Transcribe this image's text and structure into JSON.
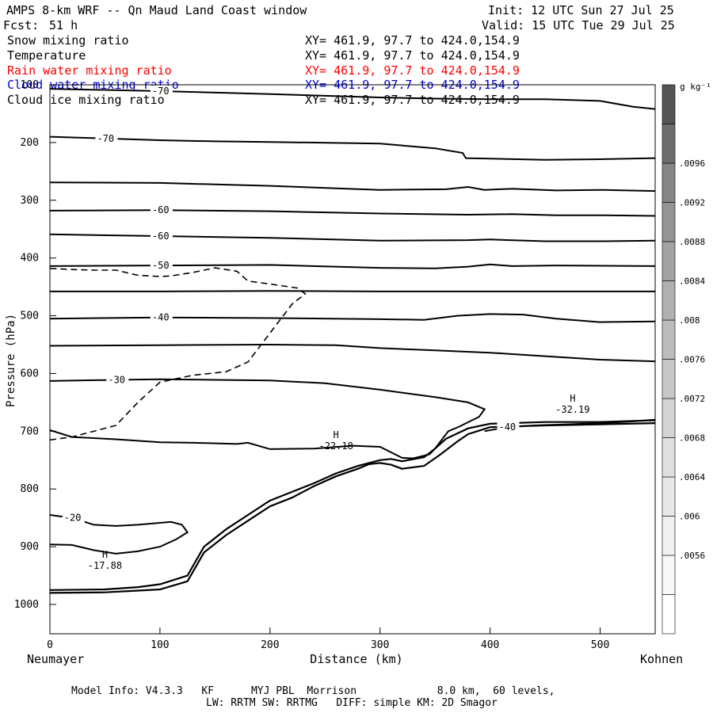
{
  "header": {
    "title": "AMPS 8-km WRF -- Qn Maud Land Coast window",
    "fcst_label": "Fcst:",
    "fcst_value": "51 h",
    "init": "Init: 12 UTC Sun 27 Jul 25",
    "valid": "Valid: 15 UTC Tue 29 Jul 25"
  },
  "fields": [
    {
      "name": "Snow mixing ratio",
      "xy": "XY= 461.9, 97.7 to 424.0,154.9",
      "color": "#000000"
    },
    {
      "name": "Temperature",
      "xy": "XY= 461.9, 97.7 to 424.0,154.9",
      "color": "#000000"
    },
    {
      "name": "Rain water mixing ratio",
      "xy": "XY= 461.9, 97.7 to 424.0,154.9",
      "color": "#ff0000"
    },
    {
      "name": "Cloud water mixing ratio",
      "xy": "XY= 461.9, 97.7 to 424.0,154.9",
      "color": "#0000cc"
    },
    {
      "name": "Cloud ice mixing ratio",
      "xy": "XY= 461.9, 97.7 to 424.0,154.9",
      "color": "#000000"
    }
  ],
  "footer": {
    "line1": "Model Info: V4.3.3   KF      MYJ PBL  Morrison             8.0 km,  60 levels,",
    "line2": "LW: RRTM SW: RRTMG   DIFF: simple KM: 2D Smagor"
  },
  "chart_data": {
    "type": "contour",
    "xlabel": "Distance (km)",
    "ylabel": "Pressure (hPa)",
    "xlim": [
      0,
      550
    ],
    "ylim": [
      1050,
      100
    ],
    "x_ticks": [
      0,
      100,
      200,
      300,
      400,
      500
    ],
    "y_ticks": [
      100,
      200,
      300,
      400,
      500,
      600,
      700,
      800,
      900,
      1000
    ],
    "endpoint_labels": {
      "left": "Neumayer",
      "right": "Kohnen"
    },
    "temperature_contours": [
      {
        "label": "-70",
        "points": [
          [
            0,
            107
          ],
          [
            100,
            111
          ],
          [
            200,
            116
          ],
          [
            300,
            122
          ],
          [
            350,
            124
          ],
          [
            400,
            125
          ],
          [
            450,
            125
          ],
          [
            500,
            128
          ],
          [
            530,
            138
          ],
          [
            550,
            142
          ]
        ]
      },
      {
        "label": "-70",
        "points": [
          [
            0,
            190
          ],
          [
            50,
            193
          ],
          [
            100,
            196
          ],
          [
            150,
            198
          ],
          [
            200,
            199
          ],
          [
            300,
            202
          ],
          [
            350,
            210
          ],
          [
            375,
            218
          ],
          [
            378,
            227
          ],
          [
            400,
            228
          ],
          [
            450,
            230
          ],
          [
            500,
            229
          ],
          [
            550,
            227
          ]
        ]
      },
      {
        "label": "",
        "points": [
          [
            0,
            269
          ],
          [
            100,
            270
          ],
          [
            200,
            275
          ],
          [
            300,
            282
          ],
          [
            360,
            281
          ],
          [
            380,
            277
          ],
          [
            395,
            282
          ],
          [
            420,
            280
          ],
          [
            460,
            283
          ],
          [
            500,
            282
          ],
          [
            550,
            284
          ]
        ]
      },
      {
        "label": "-60",
        "points": [
          [
            0,
            318
          ],
          [
            100,
            317
          ],
          [
            200,
            319
          ],
          [
            300,
            323
          ],
          [
            380,
            325
          ],
          [
            420,
            324
          ],
          [
            460,
            326
          ],
          [
            500,
            326
          ],
          [
            550,
            327
          ]
        ]
      },
      {
        "label": "-60",
        "points": [
          [
            0,
            359
          ],
          [
            100,
            362
          ],
          [
            200,
            365
          ],
          [
            300,
            370
          ],
          [
            380,
            369
          ],
          [
            400,
            368
          ],
          [
            450,
            371
          ],
          [
            500,
            371
          ],
          [
            550,
            370
          ]
        ]
      },
      {
        "label": "-50",
        "points": [
          [
            0,
            414
          ],
          [
            100,
            413
          ],
          [
            200,
            412
          ],
          [
            300,
            417
          ],
          [
            350,
            418
          ],
          [
            380,
            415
          ],
          [
            400,
            411
          ],
          [
            420,
            414
          ],
          [
            460,
            413
          ],
          [
            550,
            414
          ]
        ]
      },
      {
        "label": "",
        "points": [
          [
            0,
            458
          ],
          [
            100,
            458
          ],
          [
            200,
            457
          ],
          [
            300,
            458
          ],
          [
            400,
            458
          ],
          [
            550,
            458
          ]
        ]
      },
      {
        "label": "-40",
        "points": [
          [
            0,
            505
          ],
          [
            100,
            503
          ],
          [
            200,
            504
          ],
          [
            300,
            506
          ],
          [
            340,
            507
          ],
          [
            370,
            500
          ],
          [
            400,
            497
          ],
          [
            430,
            498
          ],
          [
            460,
            505
          ],
          [
            500,
            511
          ],
          [
            550,
            510
          ]
        ]
      },
      {
        "label": "",
        "points": [
          [
            0,
            552
          ],
          [
            100,
            551
          ],
          [
            200,
            550
          ],
          [
            260,
            551
          ],
          [
            300,
            556
          ],
          [
            350,
            560
          ],
          [
            400,
            564
          ],
          [
            450,
            570
          ],
          [
            500,
            576
          ],
          [
            550,
            579
          ]
        ]
      },
      {
        "label": "-30",
        "points": [
          [
            0,
            613
          ],
          [
            60,
            611
          ],
          [
            100,
            610
          ],
          [
            150,
            611
          ],
          [
            200,
            612
          ],
          [
            250,
            617
          ],
          [
            300,
            628
          ],
          [
            350,
            641
          ],
          [
            380,
            650
          ],
          [
            395,
            662
          ],
          [
            390,
            675
          ],
          [
            372,
            692
          ],
          [
            362,
            700
          ],
          [
            350,
            730
          ],
          [
            345,
            740
          ],
          [
            330,
            747
          ],
          [
            320,
            746
          ],
          [
            300,
            727
          ],
          [
            275,
            725
          ],
          [
            240,
            730
          ],
          [
            200,
            731
          ],
          [
            180,
            720
          ],
          [
            170,
            722
          ],
          [
            130,
            720
          ],
          [
            100,
            719
          ],
          [
            60,
            714
          ],
          [
            20,
            710
          ],
          [
            0,
            698
          ]
        ]
      },
      {
        "label": "-20",
        "points": [
          [
            0,
            845
          ],
          [
            20,
            850
          ],
          [
            40,
            862
          ],
          [
            60,
            864
          ],
          [
            80,
            862
          ],
          [
            110,
            857
          ],
          [
            120,
            862
          ],
          [
            125,
            875
          ],
          [
            115,
            887
          ],
          [
            100,
            900
          ],
          [
            80,
            908
          ],
          [
            60,
            912
          ],
          [
            40,
            906
          ],
          [
            20,
            897
          ],
          [
            0,
            896
          ]
        ]
      },
      {
        "label": "-40",
        "points": [
          [
            395,
            700
          ],
          [
            415,
            693
          ],
          [
            440,
            690
          ],
          [
            470,
            688
          ],
          [
            500,
            686
          ],
          [
            530,
            683
          ],
          [
            550,
            680
          ]
        ]
      }
    ],
    "ground_lines": [
      {
        "points": [
          [
            0,
            975
          ],
          [
            50,
            974
          ],
          [
            80,
            970
          ],
          [
            100,
            965
          ],
          [
            125,
            950
          ],
          [
            140,
            900
          ],
          [
            160,
            870
          ],
          [
            180,
            845
          ],
          [
            200,
            820
          ],
          [
            220,
            805
          ],
          [
            240,
            790
          ],
          [
            260,
            773
          ],
          [
            280,
            760
          ],
          [
            290,
            755
          ],
          [
            300,
            750
          ],
          [
            310,
            748
          ],
          [
            320,
            752
          ],
          [
            340,
            745
          ],
          [
            350,
            730
          ],
          [
            360,
            713
          ],
          [
            380,
            695
          ],
          [
            400,
            687
          ],
          [
            450,
            684
          ],
          [
            500,
            684
          ],
          [
            550,
            681
          ]
        ]
      },
      {
        "points": [
          [
            0,
            980
          ],
          [
            50,
            979
          ],
          [
            80,
            976
          ],
          [
            100,
            974
          ],
          [
            125,
            960
          ],
          [
            140,
            910
          ],
          [
            160,
            880
          ],
          [
            180,
            855
          ],
          [
            200,
            830
          ],
          [
            220,
            815
          ],
          [
            240,
            795
          ],
          [
            260,
            778
          ],
          [
            280,
            765
          ],
          [
            290,
            757
          ],
          [
            300,
            755
          ],
          [
            310,
            758
          ],
          [
            320,
            765
          ],
          [
            340,
            760
          ],
          [
            355,
            740
          ],
          [
            370,
            718
          ],
          [
            380,
            705
          ],
          [
            400,
            693
          ],
          [
            450,
            690
          ],
          [
            500,
            688
          ],
          [
            550,
            686
          ]
        ]
      }
    ],
    "snow_contour_outline": {
      "label": "",
      "points": [
        [
          0,
          715
        ],
        [
          20,
          710
        ],
        [
          60,
          690
        ],
        [
          80,
          650
        ],
        [
          100,
          615
        ],
        [
          130,
          603
        ],
        [
          160,
          597
        ],
        [
          180,
          580
        ],
        [
          200,
          530
        ],
        [
          210,
          505
        ],
        [
          220,
          480
        ],
        [
          232,
          462
        ],
        [
          225,
          452
        ],
        [
          200,
          445
        ],
        [
          180,
          440
        ],
        [
          170,
          423
        ],
        [
          150,
          417
        ],
        [
          130,
          425
        ],
        [
          110,
          431
        ],
        [
          100,
          432
        ],
        [
          80,
          430
        ],
        [
          60,
          421
        ],
        [
          40,
          421
        ],
        [
          20,
          420
        ],
        [
          0,
          418
        ]
      ]
    },
    "highs": [
      {
        "label": "H",
        "value": "-17.88",
        "x": 50,
        "p": 930
      },
      {
        "label": "H",
        "value": "-22.18",
        "x": 260,
        "p": 723
      },
      {
        "label": "H",
        "value": "-32.19",
        "x": 475,
        "p": 660
      }
    ],
    "colorbar": {
      "unit": "g kg⁻¹",
      "ticks": [
        ".0056",
        ".006",
        ".0064",
        ".0068",
        ".0072",
        ".0076",
        ".008",
        ".0084",
        ".0088",
        ".0092",
        ".0096"
      ],
      "colors": [
        "#ffffff",
        "#f8f8f8",
        "#f0f0f0",
        "#e8e8e8",
        "#e0e0e0",
        "#d4d4d4",
        "#c8c8c8",
        "#bcbcbc",
        "#b0b0b0",
        "#a2a2a2",
        "#949494",
        "#868686",
        "#6e6e6e",
        "#555555"
      ]
    }
  }
}
